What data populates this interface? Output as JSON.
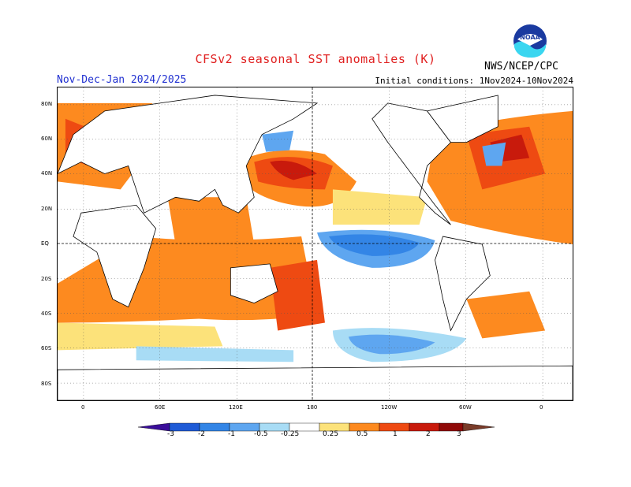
{
  "header": {
    "title": "CFSv2 seasonal SST anomalies (K)",
    "season": "Nov-Dec-Jan 2024/2025",
    "initial_conditions": "Initial conditions: 1Nov2024-10Nov2024",
    "agency": "NWS/NCEP/CPC",
    "logo_text": "NOAA"
  },
  "map": {
    "lat_labels": [
      "80N",
      "60N",
      "40N",
      "20N",
      "EQ",
      "20S",
      "40S",
      "60S",
      "80S"
    ],
    "lon_labels": [
      "0",
      "60E",
      "120E",
      "180",
      "120W",
      "60W",
      "0"
    ]
  },
  "colorbar": {
    "labels": [
      "-3",
      "-2",
      "-1",
      "-0.5",
      "-0.25",
      "0.25",
      "0.5",
      "1",
      "2",
      "3"
    ],
    "colors": [
      "#3a0e9a",
      "#1f5bd6",
      "#3385e6",
      "#5ea6f0",
      "#a8dcf5",
      "#ffffff",
      "#fce27a",
      "#fd8a1f",
      "#ee4a12",
      "#c81a0c",
      "#8f0a08",
      "#7a3c2a"
    ]
  },
  "colors": {
    "title": "#e02020",
    "season": "#2030d0",
    "coast": "#000000"
  }
}
